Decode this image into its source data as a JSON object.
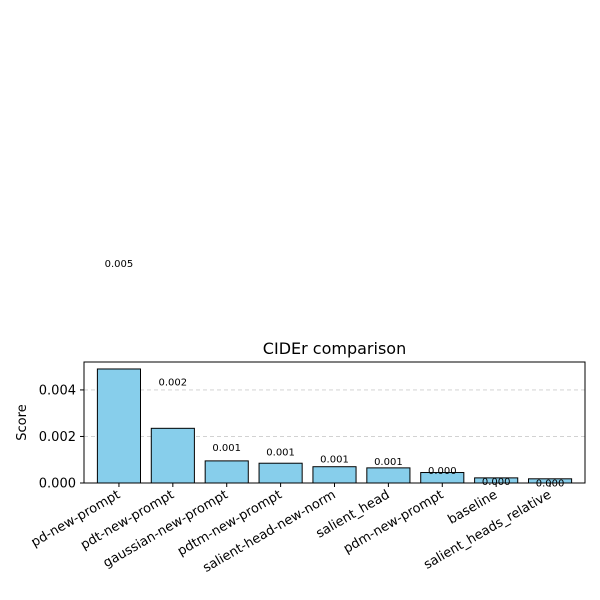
{
  "chart_data": {
    "type": "bar",
    "title": "CIDEr comparison",
    "xlabel": "",
    "ylabel": "Score",
    "categories": [
      "pd-new-prompt",
      "pdt-new-prompt",
      "gaussian-new-prompt",
      "pdtm-new-prompt",
      "salient-head-new-norm",
      "salient_head",
      "pdm-new-prompt",
      "baseline",
      "salient_heads_relative"
    ],
    "values": [
      0.0049,
      0.00235,
      0.00095,
      0.00085,
      0.0007,
      0.00065,
      0.00045,
      0.00022,
      0.00018
    ],
    "data_labels": [
      "0.005",
      "0.002",
      "0.001",
      "0.001",
      "0.001",
      "0.001",
      "0.000",
      "0.000",
      "0.000"
    ],
    "yticks": [
      0.0,
      0.002,
      0.004
    ],
    "ytick_labels": [
      "0.000",
      "0.002",
      "0.004"
    ],
    "ylim": [
      0,
      0.0052
    ],
    "grid": "y-dashed",
    "bar_color": "#87CEEB",
    "edge_color": "#000000"
  }
}
